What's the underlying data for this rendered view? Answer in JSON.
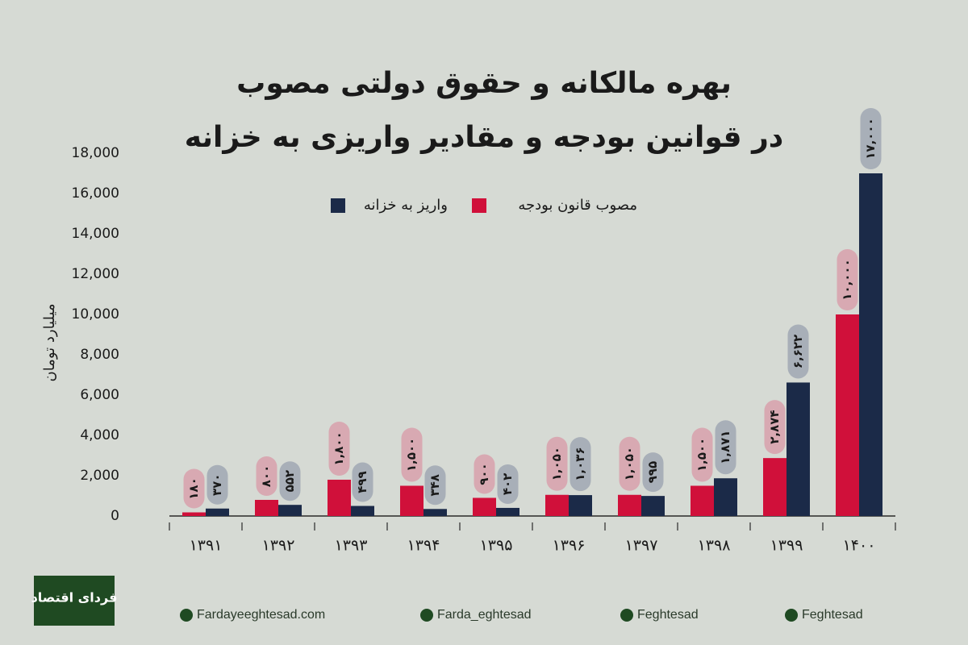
{
  "chart_data": {
    "type": "bar",
    "title": [
      "بهره مالکانه و حقوق دولتی مصوب",
      "در قوانین بودجه و مقادیر واریزی به خزانه"
    ],
    "y_label": "میلیارد تومان",
    "categories": [
      "۱۳۹۱",
      "۱۳۹۲",
      "۱۳۹۳",
      "۱۳۹۴",
      "۱۳۹۵",
      "۱۳۹۶",
      "۱۳۹۷",
      "۱۳۹۸",
      "۱۳۹۹",
      "۱۴۰۰"
    ],
    "series": [
      {
        "name": "مصوب قانون بودجه",
        "color": "#d0103a",
        "label_color": "#d8a9b2",
        "values": [
          180,
          800,
          1800,
          1500,
          900,
          1050,
          1050,
          1500,
          2874,
          10000
        ],
        "value_labels": [
          "۱۸۰",
          "۸۰۰",
          "۱,۸۰۰",
          "۱,۵۰۰",
          "۹۰۰",
          "۱,۰۵۰",
          "۱,۰۵۰",
          "۱,۵۰۰",
          "۲,۸۷۴",
          "۱۰,۰۰۰"
        ]
      },
      {
        "name": "واریز به خزانه",
        "color": "#1b2a48",
        "label_color": "#a8afb8",
        "values": [
          370,
          552,
          499,
          348,
          402,
          1036,
          995,
          1871,
          6622,
          17000
        ],
        "value_labels": [
          "۳۷۰",
          "۵۵۲",
          "۴۹۹",
          "۳۴۸",
          "۴۰۲",
          "۱,۰۳۶",
          "۹۹۵",
          "۱,۸۷۱",
          "۶,۶۲۲",
          "۱۷,۰۰۰"
        ]
      }
    ],
    "ylim": [
      0,
      18000
    ],
    "yticks": [
      0,
      {
        "value": 2000,
        "label": "2,000"
      },
      {
        "value": 4000,
        "label": "4,000"
      },
      {
        "value": 6000,
        "label": "6,000"
      },
      {
        "value": 8000,
        "label": "8,000"
      },
      {
        "value": 10000,
        "label": "10,000"
      },
      {
        "value": 12000,
        "label": "12,000"
      },
      {
        "value": 14000,
        "label": "14,000"
      },
      {
        "value": 16000,
        "label": "16,000"
      },
      {
        "value": 18000,
        "label": "18,000"
      }
    ],
    "grid": false
  },
  "footer": {
    "logo": "فردای اقتصاد",
    "links": [
      "Fardayeeghtesad.com",
      "Farda_eghtesad",
      "Feghtesad",
      "Feghtesad"
    ]
  }
}
